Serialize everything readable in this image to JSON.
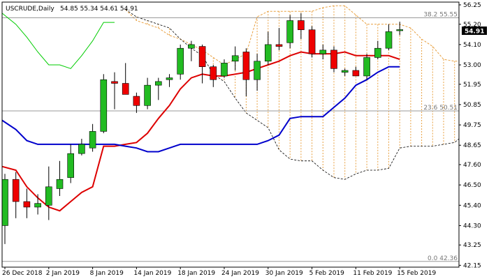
{
  "chart_data": {
    "type": "candlestick",
    "title": "USCRUDE,Daily",
    "ohlc_header": "54.85 55.34 54.61 54.91",
    "last_price_label": "54.91",
    "ylim": [
      42.05,
      56.4
    ],
    "y_ticks": [
      "56.25",
      "55.20",
      "54.10",
      "53.00",
      "51.95",
      "50.85",
      "49.75",
      "48.65",
      "47.60",
      "46.50",
      "45.40",
      "44.30",
      "43.25",
      "42.15"
    ],
    "x_labels": [
      "26 Dec 2018",
      "2 Jan 2019",
      "8 Jan 2019",
      "14 Jan 2019",
      "18 Jan 2019",
      "24 Jan 2019",
      "30 Jan 2019",
      "5 Feb 2019",
      "11 Feb 2019",
      "15 Feb 2019"
    ],
    "x_label_index": [
      0,
      4,
      8,
      12,
      16,
      20,
      24,
      28,
      32,
      36
    ],
    "fib_levels": [
      {
        "label": "38.2 55.55",
        "value": 55.55
      },
      {
        "label": "23.6 50.51",
        "value": 50.51
      },
      {
        "label": "0.0 42.36",
        "value": 42.36
      }
    ],
    "candles": [
      {
        "o": 44.3,
        "h": 47.1,
        "l": 43.3,
        "c": 46.8
      },
      {
        "o": 46.8,
        "h": 47.2,
        "l": 44.7,
        "c": 45.6
      },
      {
        "o": 45.6,
        "h": 46.3,
        "l": 44.7,
        "c": 45.3
      },
      {
        "o": 45.3,
        "h": 46.0,
        "l": 44.9,
        "c": 45.5
      },
      {
        "o": 45.4,
        "h": 47.5,
        "l": 44.6,
        "c": 46.4
      },
      {
        "o": 46.3,
        "h": 47.8,
        "l": 45.9,
        "c": 46.8
      },
      {
        "o": 46.9,
        "h": 48.7,
        "l": 46.6,
        "c": 48.2
      },
      {
        "o": 48.2,
        "h": 49.0,
        "l": 48.1,
        "c": 48.7
      },
      {
        "o": 48.5,
        "h": 49.8,
        "l": 48.3,
        "c": 49.4
      },
      {
        "o": 49.4,
        "h": 52.5,
        "l": 49.3,
        "c": 52.2
      },
      {
        "o": 52.1,
        "h": 52.6,
        "l": 50.6,
        "c": 52.0
      },
      {
        "o": 52.0,
        "h": 53.1,
        "l": 51.4,
        "c": 51.4
      },
      {
        "o": 51.3,
        "h": 51.5,
        "l": 50.4,
        "c": 50.8
      },
      {
        "o": 50.8,
        "h": 52.3,
        "l": 50.6,
        "c": 51.9
      },
      {
        "o": 51.9,
        "h": 52.3,
        "l": 51.1,
        "c": 52.1
      },
      {
        "o": 52.2,
        "h": 52.5,
        "l": 51.8,
        "c": 52.3
      },
      {
        "o": 52.5,
        "h": 54.1,
        "l": 52.2,
        "c": 53.9
      },
      {
        "o": 53.9,
        "h": 54.3,
        "l": 53.2,
        "c": 54.1
      },
      {
        "o": 54.0,
        "h": 54.1,
        "l": 52.0,
        "c": 52.9
      },
      {
        "o": 52.9,
        "h": 53.0,
        "l": 51.8,
        "c": 52.2
      },
      {
        "o": 52.4,
        "h": 53.3,
        "l": 52.3,
        "c": 53.1
      },
      {
        "o": 53.2,
        "h": 54.0,
        "l": 52.7,
        "c": 53.5
      },
      {
        "o": 53.7,
        "h": 53.9,
        "l": 51.3,
        "c": 52.2
      },
      {
        "o": 52.2,
        "h": 53.6,
        "l": 51.6,
        "c": 53.2
      },
      {
        "o": 53.2,
        "h": 54.8,
        "l": 53.0,
        "c": 54.1
      },
      {
        "o": 54.1,
        "h": 55.0,
        "l": 53.8,
        "c": 54.0
      },
      {
        "o": 54.2,
        "h": 55.7,
        "l": 53.9,
        "c": 55.4
      },
      {
        "o": 55.4,
        "h": 55.8,
        "l": 54.4,
        "c": 54.9
      },
      {
        "o": 54.9,
        "h": 55.1,
        "l": 53.4,
        "c": 53.6
      },
      {
        "o": 53.6,
        "h": 54.1,
        "l": 53.3,
        "c": 53.8
      },
      {
        "o": 53.8,
        "h": 54.0,
        "l": 52.6,
        "c": 52.8
      },
      {
        "o": 52.6,
        "h": 52.8,
        "l": 52.4,
        "c": 52.7
      },
      {
        "o": 52.7,
        "h": 52.9,
        "l": 52.4,
        "c": 52.4
      },
      {
        "o": 52.4,
        "h": 53.6,
        "l": 52.2,
        "c": 53.4
      },
      {
        "o": 53.4,
        "h": 54.3,
        "l": 53.3,
        "c": 53.9
      },
      {
        "o": 53.9,
        "h": 55.2,
        "l": 53.8,
        "c": 54.8
      },
      {
        "o": 54.85,
        "h": 55.34,
        "l": 54.61,
        "c": 54.91
      }
    ],
    "series": [
      {
        "kind": "red-line",
        "color": "#dd0000",
        "values": [
          47.5,
          47.3,
          46.4,
          45.8,
          45.3,
          45.1,
          45.6,
          46.1,
          46.4,
          48.6,
          48.6,
          48.7,
          48.8,
          49.3,
          50.1,
          50.8,
          51.7,
          52.3,
          52.5,
          52.4,
          52.4,
          52.5,
          52.6,
          52.8,
          53.0,
          53.2,
          53.5,
          53.7,
          53.6,
          53.6,
          53.6,
          53.7,
          53.5,
          53.5,
          53.5,
          53.5,
          53.3
        ]
      },
      {
        "kind": "blue-line",
        "color": "#0000cc",
        "values": [
          50.0,
          49.5,
          48.9,
          48.7,
          48.7,
          48.7,
          48.7,
          48.7,
          48.7,
          48.7,
          48.7,
          48.6,
          48.5,
          48.3,
          48.3,
          48.5,
          48.7,
          48.7,
          48.7,
          48.7,
          48.7,
          48.7,
          48.7,
          48.7,
          48.9,
          49.2,
          50.1,
          50.2,
          50.2,
          50.2,
          50.7,
          51.2,
          51.9,
          52.2,
          52.6,
          52.9,
          52.9
        ]
      },
      {
        "kind": "green-line",
        "color": "#00cc00",
        "values": [
          55.8,
          55.2,
          54.5,
          53.7,
          53.0,
          53.0,
          52.8,
          53.5,
          54.3,
          55.3,
          55.3,
          null,
          null,
          null,
          null,
          null,
          null,
          null,
          null,
          null,
          null,
          null,
          null,
          null,
          null,
          null,
          null,
          null,
          null,
          null,
          null,
          null,
          null,
          null,
          null,
          null,
          null
        ]
      }
    ],
    "cloud_upper": [
      null,
      null,
      null,
      null,
      null,
      null,
      null,
      null,
      null,
      null,
      null,
      56.0,
      55.4,
      55.2,
      55.0,
      54.6,
      54.4,
      54.1,
      53.8,
      53.4,
      53.0,
      53.3,
      53.6,
      55.6,
      55.9,
      55.9,
      55.9,
      55.9,
      55.9,
      56.1,
      56.2,
      56.2,
      55.7,
      55.2,
      55.2,
      55.2,
      55.2,
      55.0,
      54.4,
      54.0,
      53.3,
      53.2,
      53.2
    ],
    "cloud_lower": [
      null,
      null,
      null,
      null,
      null,
      null,
      null,
      null,
      null,
      null,
      null,
      56.0,
      55.6,
      55.4,
      55.2,
      55.0,
      54.4,
      53.9,
      53.5,
      52.5,
      52.1,
      51.2,
      50.4,
      50.0,
      49.6,
      48.4,
      47.9,
      47.8,
      47.8,
      47.3,
      46.9,
      46.8,
      47.1,
      47.3,
      47.3,
      47.4,
      48.5,
      48.6,
      48.6,
      48.6,
      48.7,
      48.8,
      49.0
    ]
  }
}
